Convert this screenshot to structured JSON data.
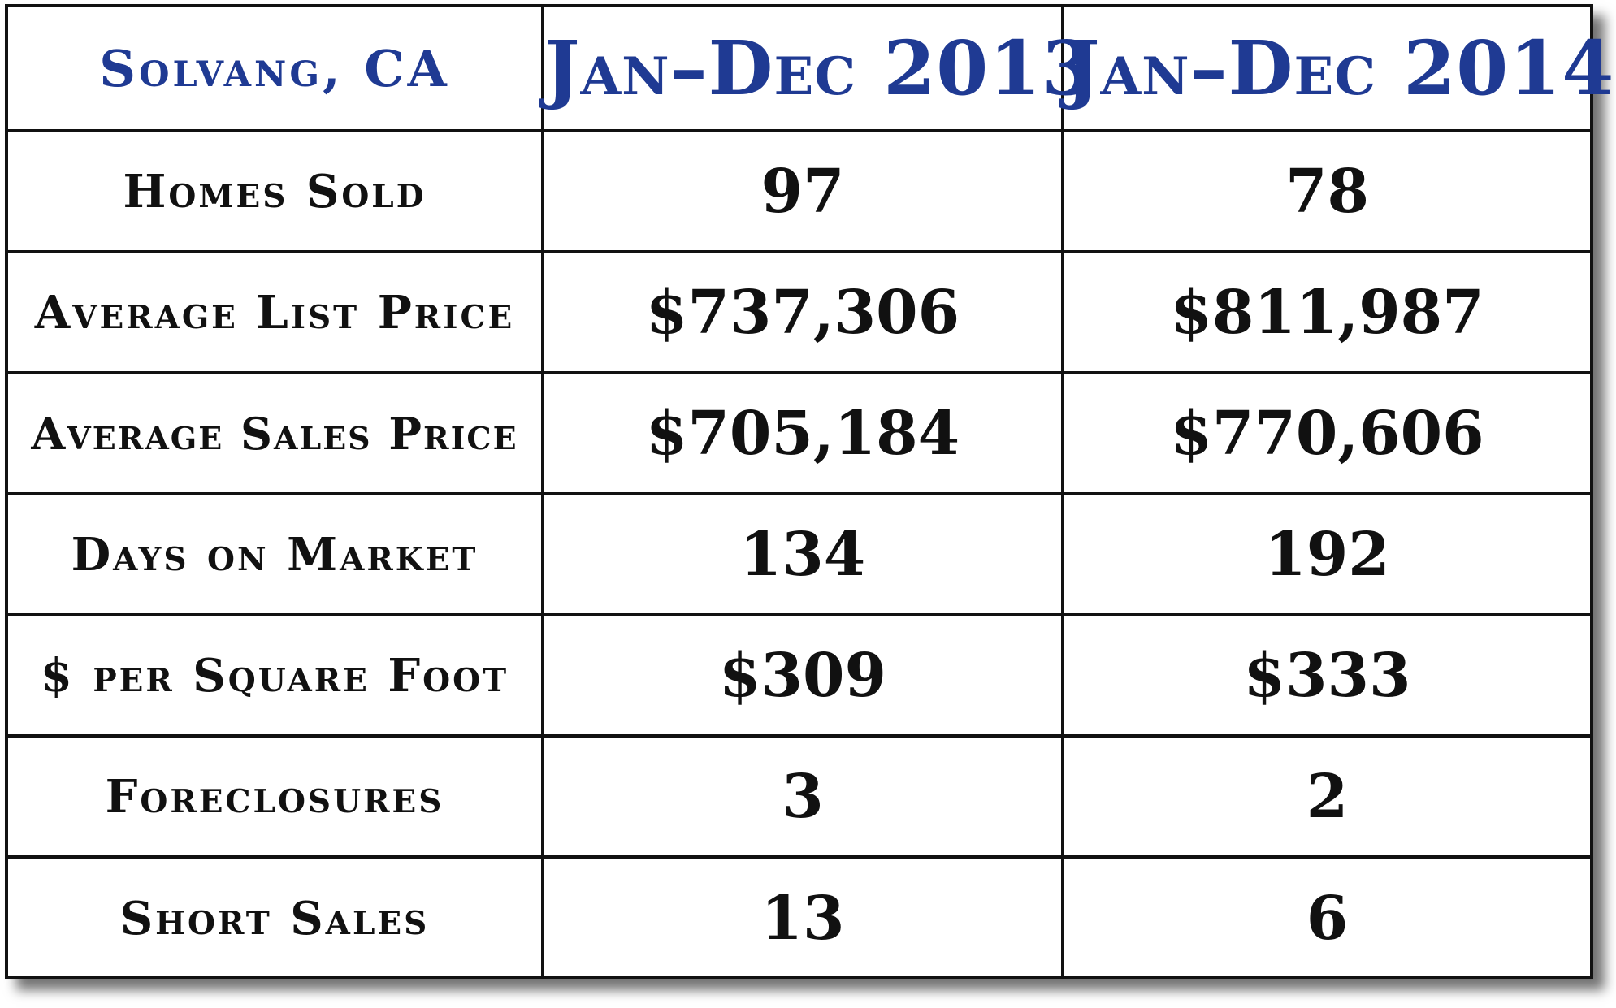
{
  "colors": {
    "header_text": "#1f3a93",
    "body_text": "#111111",
    "grid": "#111111",
    "background": "#ffffff"
  },
  "table": {
    "location": "Solvang, CA",
    "columns": [
      "Jan–Dec 2013",
      "Jan–Dec 2014"
    ],
    "rows": [
      {
        "label": "Homes Sold",
        "values": [
          "97",
          "78"
        ]
      },
      {
        "label": "Average List Price",
        "values": [
          "$737,306",
          "$811,987"
        ]
      },
      {
        "label": "Average Sales Price",
        "values": [
          "$705,184",
          "$770,606"
        ]
      },
      {
        "label": "Days on Market",
        "values": [
          "134",
          "192"
        ]
      },
      {
        "label": "$ per Square Foot",
        "values": [
          "$309",
          "$333"
        ]
      },
      {
        "label": "Foreclosures",
        "values": [
          "3",
          "2"
        ]
      },
      {
        "label": "Short Sales",
        "values": [
          "13",
          "6"
        ]
      }
    ]
  }
}
